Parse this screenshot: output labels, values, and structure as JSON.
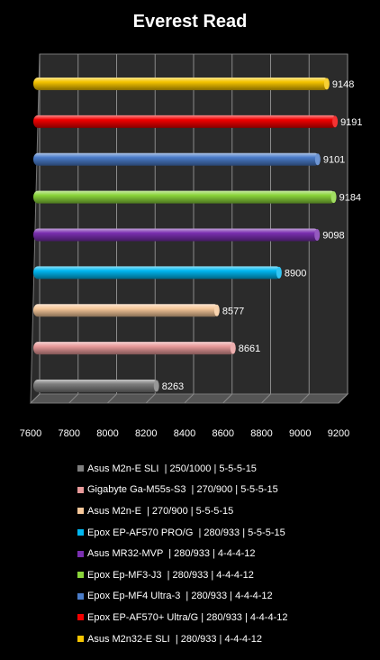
{
  "chart_data": {
    "type": "bar",
    "orientation": "horizontal",
    "title": "Everest Read",
    "xlim": [
      7600,
      9200
    ],
    "xticks": [
      "7600",
      "7800",
      "8000",
      "8200",
      "8400",
      "8600",
      "8800",
      "9000",
      "9200"
    ],
    "grid": true,
    "legend_position": "bottom",
    "series": [
      {
        "name": "Asus M2n32-E SLI  | 280/933 | 4-4-4-12",
        "value": 9148,
        "label": "9148",
        "color": "#f5c400"
      },
      {
        "name": "Epox EP-AF570+ Ultra/G | 280/933 | 4-4-4-12",
        "value": 9191,
        "label": "9191",
        "color": "#f20000"
      },
      {
        "name": "Epox Ep-MF4 Ultra-3  | 280/933 | 4-4-4-12",
        "value": 9101,
        "label": "9101",
        "color": "#4a7cc9"
      },
      {
        "name": "Epox Ep-MF3-J3  | 280/933 | 4-4-4-12",
        "value": 9184,
        "label": "9184",
        "color": "#8ad43a"
      },
      {
        "name": "Asus MR32-MVP  | 280/933 | 4-4-4-12",
        "value": 9098,
        "label": "9098",
        "color": "#7a2fb0"
      },
      {
        "name": "Epox EP-AF570 PRO/G  | 280/933 | 5-5-5-15",
        "value": 8900,
        "label": "8900",
        "color": "#00b7f0"
      },
      {
        "name": "Asus M2n-E  | 270/900 | 5-5-5-15",
        "value": 8577,
        "label": "8577",
        "color": "#f6c89a"
      },
      {
        "name": "Gigabyte Ga-M55s-S3  | 270/900 | 5-5-5-15",
        "value": 8661,
        "label": "8661",
        "color": "#e89a9a"
      },
      {
        "name": "Asus M2n-E SLI  | 250/1000 | 5-5-5-15",
        "value": 8263,
        "label": "8263",
        "color": "#7d7d7d"
      }
    ],
    "legend_order": [
      8,
      7,
      6,
      5,
      4,
      3,
      2,
      1,
      0
    ]
  }
}
